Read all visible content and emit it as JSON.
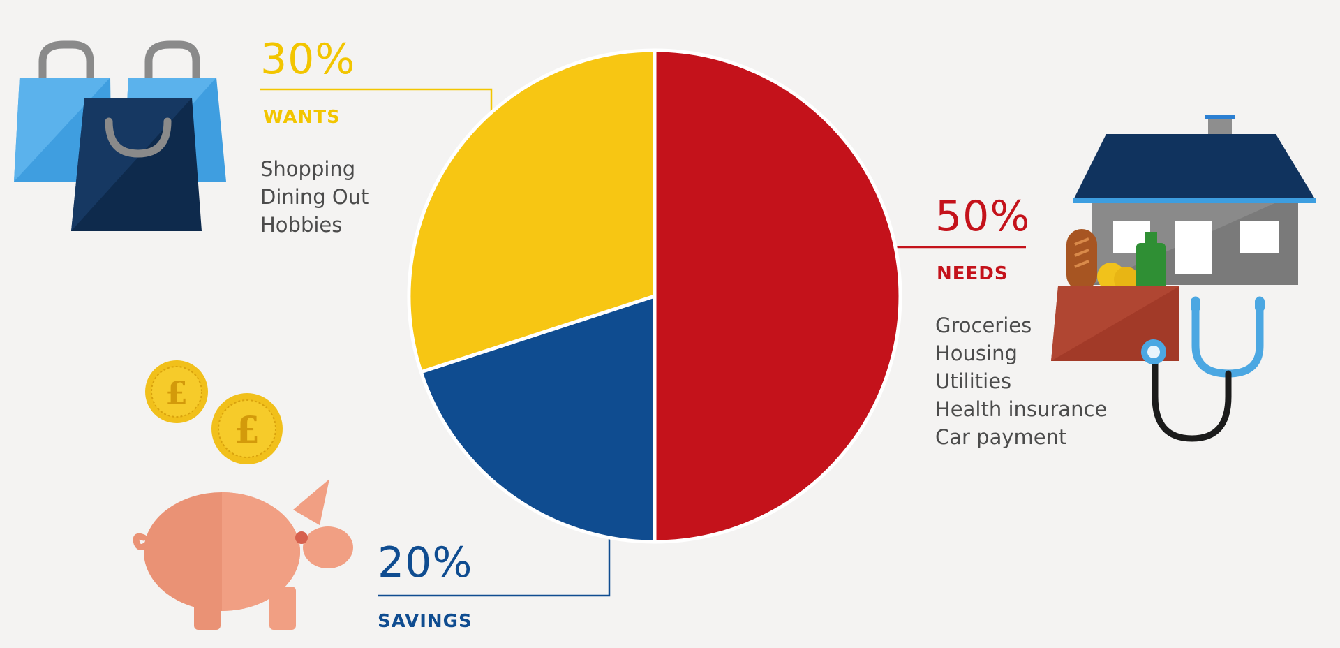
{
  "chart_data": {
    "type": "pie",
    "slices": [
      {
        "key": "needs",
        "value": 50,
        "percent_label": "50%",
        "category": "NEEDS",
        "color": "#c4121b",
        "items": [
          "Groceries",
          "Housing",
          "Utilities",
          "Health insurance",
          "Car payment"
        ]
      },
      {
        "key": "savings",
        "value": 20,
        "percent_label": "20%",
        "category": "SAVINGS",
        "color": "#0f4c90",
        "items": []
      },
      {
        "key": "wants",
        "value": 30,
        "percent_label": "30%",
        "category": "WANTS",
        "color": "#f7c613",
        "items": [
          "Shopping",
          "Dining Out",
          "Hobbies"
        ]
      }
    ],
    "start_angle": "top, clockwise"
  },
  "icons": {
    "wants": "shopping-bags-icon",
    "savings": "piggy-bank-with-pound-coins-icon",
    "needs": "house-groceries-stethoscope-icon"
  }
}
